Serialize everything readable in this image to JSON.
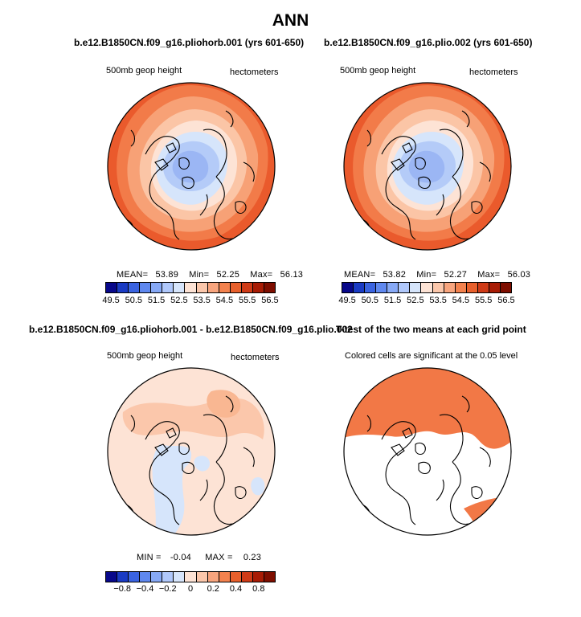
{
  "title": "ANN",
  "panels": {
    "top_left": {
      "title": "b.e12.B1850CN.f09_g16.pliohorb.001 (yrs 601-650)",
      "left_label": "500mb geop height",
      "right_label": "hectometers",
      "stats": {
        "mean_label": "MEAN=",
        "mean": "53.89",
        "min_label": "Min=",
        "min": "52.25",
        "max_label": "Max=",
        "max": "56.13"
      }
    },
    "top_right": {
      "title": "b.e12.B1850CN.f09_g16.plio.002 (yrs 601-650)",
      "left_label": "500mb geop height",
      "right_label": "hectometers",
      "stats": {
        "mean_label": "MEAN=",
        "mean": "53.82",
        "min_label": "Min=",
        "min": "52.27",
        "max_label": "Max=",
        "max": "56.03"
      }
    },
    "bottom_left": {
      "title": "b.e12.B1850CN.f09_g16.pliohorb.001 - b.e12.B1850CN.f09_g16.plio.002",
      "left_label": "500mb geop height",
      "right_label": "hectometers",
      "stats": {
        "min_label": "MIN =",
        "min": "-0.04",
        "max_label": "MAX =",
        "max": "0.23"
      }
    },
    "bottom_right": {
      "title": "T-test of the two means at each grid point",
      "note": "Colored cells are significant at the 0.05 level"
    }
  },
  "colorbar_abs": {
    "colors": [
      "#08088a",
      "#1a3bc4",
      "#3a63e0",
      "#5f88ef",
      "#87a9f6",
      "#b0c8fb",
      "#d6e5fb",
      "#fde3d5",
      "#fbc7ab",
      "#f8a57e",
      "#f3824e",
      "#e8602c",
      "#cf3b17",
      "#a81c05",
      "#7e0e00"
    ],
    "labels": [
      "49.5",
      "50.5",
      "51.5",
      "52.5",
      "53.5",
      "54.5",
      "55.5",
      "56.5"
    ]
  },
  "colorbar_diff": {
    "colors": [
      "#08088a",
      "#1a3bc4",
      "#3a63e0",
      "#5f88ef",
      "#87a9f6",
      "#b0c8fb",
      "#d6e5fb",
      "#fde3d5",
      "#fbc7ab",
      "#f8a57e",
      "#f3824e",
      "#e8602c",
      "#cf3b17",
      "#a81c05",
      "#7e0e00"
    ],
    "labels": [
      "−0.8",
      "−0.4",
      "−0.2",
      "0",
      "0.2",
      "0.4",
      "0.8"
    ]
  },
  "colors": {
    "ring_outer": "#ea5a2c",
    "ring_2": "#f27b49",
    "ring_3": "#f7a176",
    "ring_4": "#fbc5a6",
    "ring_5": "#fde3d5",
    "pale_blue": "#d6e5fb",
    "mid_blue": "#b4cbf8",
    "deep_blue": "#9bb6f4",
    "diff_peach": "#fde3d5",
    "diff_salmon": "#fbc7ab",
    "sig_orange": "#f27846"
  }
}
